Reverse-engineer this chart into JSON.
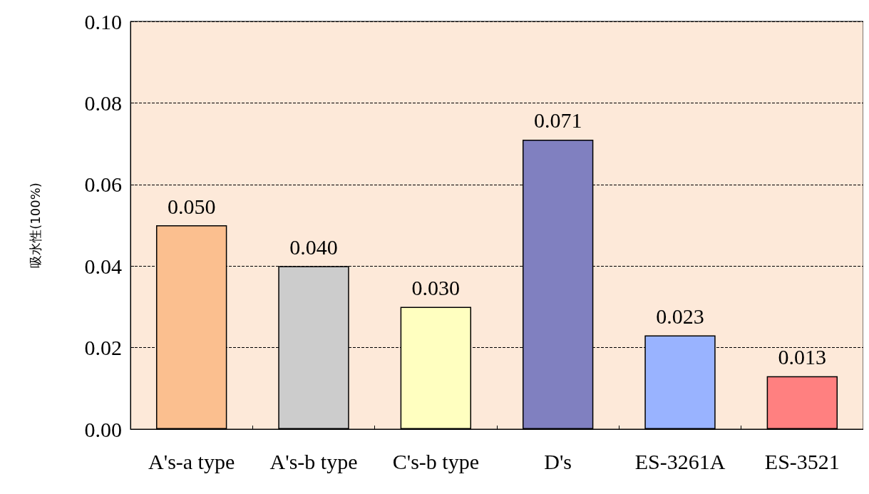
{
  "chart_data": {
    "type": "bar",
    "ylabel": "吸水性(100%)",
    "categories": [
      "A's-a type",
      "A's-b type",
      "C's-b type",
      "D's",
      "ES-3261A",
      "ES-3521"
    ],
    "values": [
      0.05,
      0.04,
      0.03,
      0.071,
      0.023,
      0.013
    ],
    "colors": [
      "#fbbf8f",
      "#cccccc",
      "#ffffc0",
      "#8080c0",
      "#99b3ff",
      "#ff8080"
    ],
    "value_labels": [
      "0.050",
      "0.040",
      "0.030",
      "0.071",
      "0.023",
      "0.013"
    ],
    "ylim": [
      0,
      0.1
    ],
    "yticks": [
      {
        "value": 0,
        "label": "0.00"
      },
      {
        "value": 0.02,
        "label": "0.02"
      },
      {
        "value": 0.04,
        "label": "0.04"
      },
      {
        "value": 0.06,
        "label": "0.06"
      },
      {
        "value": 0.08,
        "label": "0.08"
      },
      {
        "value": 0.1,
        "label": "0.10"
      }
    ],
    "grid": "y"
  }
}
